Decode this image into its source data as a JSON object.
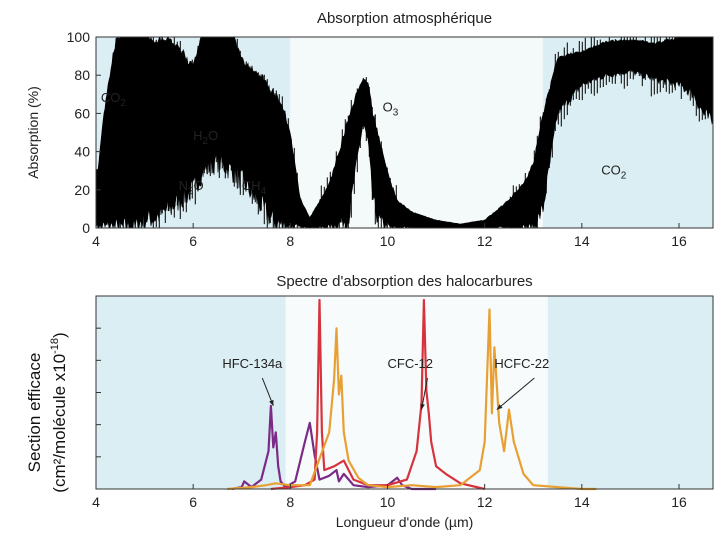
{
  "chart_data": [
    {
      "type": "area",
      "title": "Absorption atmosphérique",
      "ylabel": "Absorption (%)",
      "xlabel": "",
      "xlim": [
        4,
        16.7
      ],
      "ylim": [
        0,
        100
      ],
      "x_ticks": [
        "4",
        "6",
        "8",
        "10",
        "12",
        "14",
        "16"
      ],
      "y_ticks": [
        "0",
        "20",
        "40",
        "60",
        "80",
        "100"
      ],
      "grid": false,
      "background_bands": [
        {
          "from": 4,
          "to": 8,
          "color": "#dbeef3"
        },
        {
          "from": 8,
          "to": 13.2,
          "color": "#f4f9fa"
        },
        {
          "from": 13.2,
          "to": 16.7,
          "color": "#dbeef3"
        }
      ],
      "series_color": "#000000",
      "envelope": {
        "x": [
          4.0,
          4.05,
          4.1,
          4.2,
          4.3,
          4.4,
          4.5,
          4.6,
          4.7,
          4.8,
          5.0,
          5.2,
          5.5,
          6.0,
          6.2,
          6.5,
          6.8,
          7.0,
          7.3,
          7.6,
          7.8,
          8.0,
          8.2,
          8.4,
          8.8,
          9.2,
          9.4,
          9.5,
          9.6,
          9.7,
          9.8,
          10.0,
          10.2,
          10.5,
          11.0,
          11.5,
          12.0,
          12.4,
          12.8,
          13.0,
          13.2,
          13.5,
          14.0,
          14.5,
          15.0,
          15.5,
          16.0,
          16.3,
          16.5,
          16.7
        ],
        "upper": [
          28,
          30,
          45,
          65,
          80,
          95,
          100,
          100,
          100,
          100,
          100,
          96,
          98,
          82,
          100,
          100,
          100,
          85,
          80,
          70,
          65,
          48,
          15,
          5,
          22,
          55,
          72,
          78,
          75,
          58,
          48,
          28,
          14,
          8,
          4,
          2,
          4,
          12,
          22,
          32,
          58,
          88,
          92,
          97,
          98,
          96,
          99,
          100,
          100,
          100
        ],
        "lower": [
          0,
          0,
          0,
          0,
          0,
          0,
          0,
          0,
          0,
          0,
          5,
          5,
          10,
          20,
          30,
          35,
          30,
          25,
          15,
          5,
          2,
          0,
          0,
          0,
          0,
          5,
          40,
          55,
          45,
          15,
          5,
          0,
          0,
          0,
          0,
          0,
          0,
          0,
          0,
          0,
          10,
          60,
          75,
          80,
          82,
          78,
          75,
          70,
          60,
          55
        ]
      },
      "annotations": [
        {
          "text": "CO",
          "sub": "2",
          "x": 4.1,
          "y": 66
        },
        {
          "text": "H",
          "sub": "2",
          "tail": "O",
          "x": 6.0,
          "y": 46
        },
        {
          "text": "N",
          "sub": "2",
          "tail": "O",
          "x": 5.7,
          "y": 20
        },
        {
          "text": "CH",
          "sub": "4",
          "x": 7.0,
          "y": 20
        },
        {
          "text": "O",
          "sub": "3",
          "x": 9.9,
          "y": 61
        },
        {
          "text": "CO",
          "sub": "2",
          "x": 14.4,
          "y": 28
        }
      ]
    },
    {
      "type": "line",
      "title": "Spectre d'absorption des halocarbures",
      "xlabel": "Longueur d'onde (µm)",
      "ylabel_line1": "Section efficace",
      "ylabel_line2_main": "(cm²/molécule x10",
      "ylabel_line2_sup": "-18",
      "ylabel_line2_close": ")",
      "xlim": [
        4,
        16.7
      ],
      "ylim": [
        0,
        1
      ],
      "x_ticks": [
        "4",
        "6",
        "8",
        "10",
        "12",
        "14",
        "16"
      ],
      "y_tick_count": 5,
      "grid": false,
      "background_bands": [
        {
          "from": 4,
          "to": 7.9,
          "color": "#dbeef3"
        },
        {
          "from": 7.9,
          "to": 13.3,
          "color": "#f7fbfc"
        },
        {
          "from": 13.3,
          "to": 16.7,
          "color": "#dbeef3"
        }
      ],
      "series": [
        {
          "color": "#7b2b86",
          "x": [
            6.8,
            7.0,
            7.05,
            7.2,
            7.4,
            7.55,
            7.6,
            7.65,
            7.7,
            7.75,
            7.8,
            7.9,
            8.1,
            8.3,
            8.4,
            8.5,
            8.6,
            8.8,
            8.95,
            9.0,
            9.1,
            9.3,
            9.6,
            10.0,
            10.2,
            10.3,
            10.5,
            11.0
          ],
          "values": [
            0.0,
            0.01,
            0.04,
            0.01,
            0.05,
            0.2,
            0.44,
            0.22,
            0.3,
            0.12,
            0.04,
            0.01,
            0.04,
            0.25,
            0.35,
            0.18,
            0.05,
            0.07,
            0.1,
            0.04,
            0.08,
            0.02,
            0.01,
            0.02,
            0.06,
            0.02,
            0.0,
            0.0
          ]
        },
        {
          "color": "#d6333d",
          "x": [
            7.6,
            8.0,
            8.3,
            8.5,
            8.55,
            8.6,
            8.65,
            8.7,
            8.9,
            9.1,
            9.3,
            9.6,
            10.0,
            10.4,
            10.6,
            10.7,
            10.75,
            10.8,
            10.85,
            10.9,
            11.0,
            11.2,
            11.5,
            12.0
          ],
          "values": [
            0.0,
            0.01,
            0.02,
            0.05,
            0.3,
            1.0,
            0.3,
            0.1,
            0.12,
            0.15,
            0.05,
            0.02,
            0.02,
            0.05,
            0.2,
            0.45,
            1.0,
            0.52,
            0.4,
            0.25,
            0.12,
            0.08,
            0.03,
            0.0
          ]
        },
        {
          "color": "#e8a033",
          "x": [
            6.7,
            7.2,
            7.5,
            7.7,
            8.0,
            8.4,
            8.8,
            8.9,
            8.95,
            9.0,
            9.05,
            9.1,
            9.2,
            9.4,
            9.6,
            10.0,
            10.5,
            11.0,
            11.5,
            11.9,
            12.0,
            12.1,
            12.15,
            12.2,
            12.25,
            12.3,
            12.4,
            12.5,
            12.6,
            12.8,
            13.0,
            13.5,
            14.0,
            14.3
          ],
          "values": [
            0.0,
            0.01,
            0.02,
            0.03,
            0.02,
            0.02,
            0.3,
            0.58,
            0.85,
            0.5,
            0.6,
            0.3,
            0.15,
            0.06,
            0.02,
            0.01,
            0.02,
            0.01,
            0.02,
            0.1,
            0.25,
            0.95,
            0.4,
            0.75,
            0.55,
            0.35,
            0.2,
            0.42,
            0.25,
            0.08,
            0.02,
            0.01,
            0.0,
            0.0
          ]
        }
      ],
      "annotations": [
        {
          "text": "HFC-134a",
          "x": 6.6,
          "y": 0.64,
          "arrow_to": [
            7.65,
            0.44
          ]
        },
        {
          "text": "CFC-12",
          "x": 10.0,
          "y": 0.64,
          "arrow_to": [
            10.7,
            0.42
          ]
        },
        {
          "text": "HCFC-22",
          "x": 12.2,
          "y": 0.64,
          "arrow_to": [
            12.25,
            0.42
          ]
        }
      ]
    }
  ]
}
